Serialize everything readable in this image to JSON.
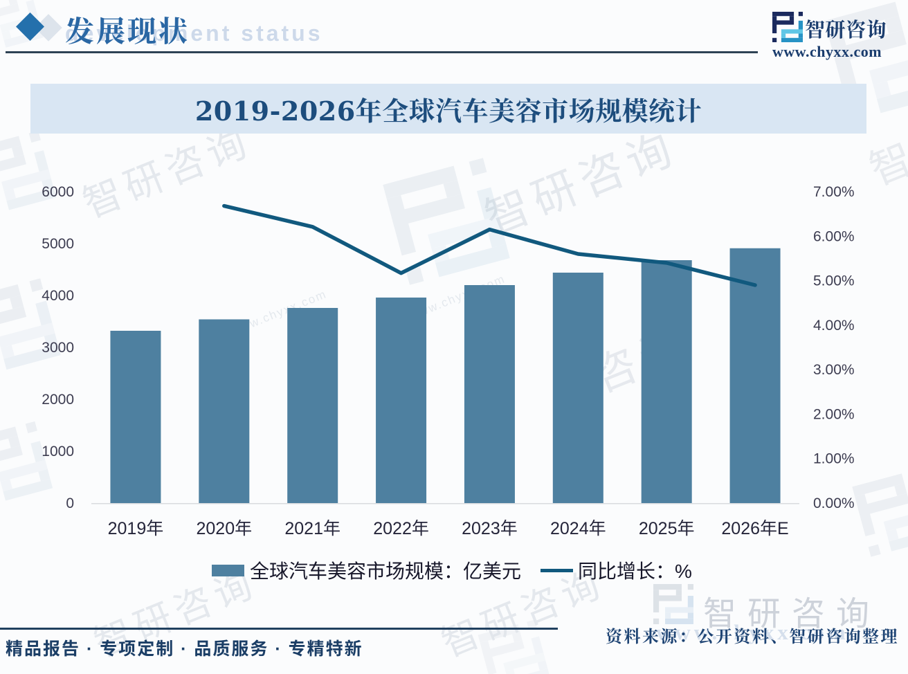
{
  "header": {
    "title": "发展现状",
    "title_ghost": "development status",
    "brand_name": "智研咨询",
    "brand_url": "www.chyxx.com"
  },
  "chart_data": {
    "type": "bar+line",
    "title": "2019-2026年全球汽车美容市场规模统计",
    "categories": [
      "2019年",
      "2020年",
      "2021年",
      "2022年",
      "2023年",
      "2024年",
      "2025年",
      "2026年E"
    ],
    "series": [
      {
        "name": "全球汽车美容市场规模：亿美元",
        "type": "bar",
        "axis": "left",
        "values": [
          3320,
          3540,
          3760,
          3960,
          4200,
          4440,
          4680,
          4910
        ],
        "color": "#4e80a0"
      },
      {
        "name": "同比增长：%",
        "type": "line",
        "axis": "right",
        "values": [
          null,
          6.68,
          6.21,
          5.17,
          6.15,
          5.6,
          5.4,
          4.9
        ],
        "color": "#11597e"
      }
    ],
    "left_axis": {
      "min": 0,
      "max": 6000,
      "step": 1000,
      "ticks": [
        "0",
        "1000",
        "2000",
        "3000",
        "4000",
        "5000",
        "6000"
      ]
    },
    "right_axis": {
      "min": 0,
      "max": 7,
      "step": 1,
      "ticks": [
        "0.00%",
        "1.00%",
        "2.00%",
        "3.00%",
        "4.00%",
        "5.00%",
        "6.00%",
        "7.00%"
      ]
    },
    "grid": false,
    "legend_position": "bottom"
  },
  "source": {
    "text": "资料来源：公开资料、智研咨询整理",
    "watermark_brand": "智研咨询",
    "watermark_url": "www.chyxx.com"
  },
  "footer": {
    "text": "精品报告 · 专项定制 · 品质服务 · 专精特新"
  },
  "watermarks": {
    "brand": "智研咨询",
    "url": "www.chyxx.com",
    "snippet": "咨询"
  },
  "colors": {
    "bar": "#4e80a0",
    "line": "#11597e",
    "titlebar_bg": "#d9e6f3",
    "accent_blue": "#2470ac",
    "dark_navy": "#1b3d6e"
  }
}
